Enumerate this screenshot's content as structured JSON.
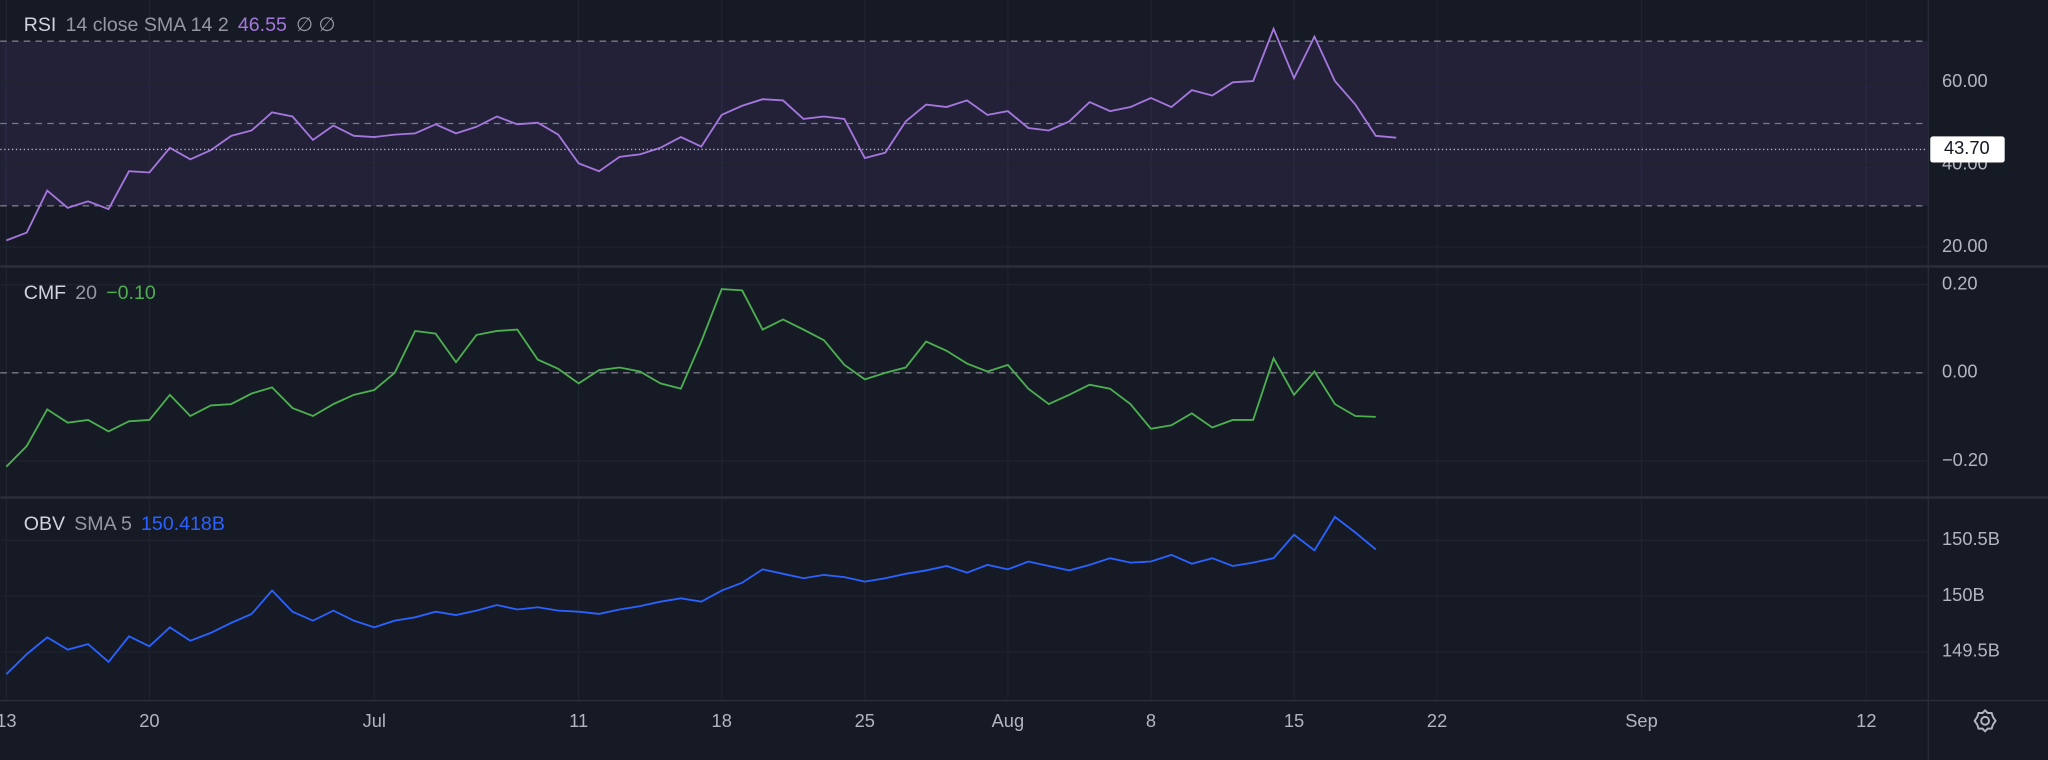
{
  "x_axis": {
    "xlim": [
      -0.3,
      94
    ],
    "xticks": [
      {
        "value": 0,
        "label": "13"
      },
      {
        "value": 7,
        "label": "20"
      },
      {
        "value": 18,
        "label": "Jul"
      },
      {
        "value": 28,
        "label": "11"
      },
      {
        "value": 35,
        "label": "18"
      },
      {
        "value": 42,
        "label": "25"
      },
      {
        "value": 49,
        "label": "Aug"
      },
      {
        "value": 56,
        "label": "8"
      },
      {
        "value": 63,
        "label": "15"
      },
      {
        "value": 70,
        "label": "22"
      },
      {
        "value": 80,
        "label": "Sep"
      },
      {
        "value": 91,
        "label": "12"
      }
    ]
  },
  "chart_data": [
    {
      "type": "line",
      "title": "RSI",
      "params": "14 close SMA 14 2",
      "legend_value": "46.55",
      "extra": "∅ ∅",
      "series": [
        {
          "name": "RSI",
          "color": "#a577dd",
          "values": [
            21.6,
            23.5,
            33.7,
            29.5,
            31.1,
            29.2,
            38.4,
            38.1,
            44.1,
            41.3,
            43.5,
            47.0,
            48.3,
            52.7,
            51.7,
            46.0,
            49.5,
            47.0,
            46.7,
            47.3,
            47.6,
            49.8,
            47.6,
            49.2,
            51.7,
            49.8,
            50.2,
            47.3,
            40.3,
            38.4,
            41.9,
            42.5,
            44.1,
            46.7,
            44.4,
            52.1,
            54.3,
            55.9,
            55.6,
            51.1,
            51.7,
            51.1,
            41.6,
            42.9,
            50.5,
            54.6,
            54.0,
            55.6,
            52.1,
            53.0,
            48.9,
            48.3,
            50.5,
            55.2,
            53.0,
            54.0,
            56.2,
            54.0,
            58.1,
            56.8,
            60.0,
            60.3,
            73.0,
            61.0,
            71.1,
            60.3,
            54.6,
            47.0,
            46.55
          ]
        }
      ],
      "ylim": [
        15.6,
        80
      ],
      "yticks": [
        {
          "value": 20,
          "label": "20.00"
        },
        {
          "value": 40,
          "label": "40.00"
        },
        {
          "value": 60,
          "label": "60.00"
        }
      ],
      "levels": [
        30,
        50,
        70
      ],
      "band": true,
      "band_color": "rgba(126,87,194,0.12)",
      "marker": {
        "value": 43.7,
        "label": "43.70"
      },
      "grid": true
    },
    {
      "type": "line",
      "title": "CMF",
      "params": "20",
      "legend_value": "−0.10",
      "series": [
        {
          "name": "CMF",
          "color": "#4caf50",
          "values": [
            -0.213,
            -0.166,
            -0.083,
            -0.113,
            -0.107,
            -0.133,
            -0.11,
            -0.107,
            -0.05,
            -0.098,
            -0.074,
            -0.071,
            -0.047,
            -0.033,
            -0.08,
            -0.098,
            -0.071,
            -0.05,
            -0.039,
            0.0,
            0.095,
            0.089,
            0.024,
            0.086,
            0.095,
            0.098,
            0.03,
            0.009,
            -0.024,
            0.006,
            0.012,
            0.003,
            -0.024,
            -0.036,
            0.071,
            0.19,
            0.187,
            0.098,
            0.121,
            0.098,
            0.074,
            0.018,
            -0.015,
            0.0,
            0.012,
            0.071,
            0.05,
            0.021,
            0.003,
            0.018,
            -0.036,
            -0.071,
            -0.05,
            -0.027,
            -0.036,
            -0.071,
            -0.127,
            -0.119,
            -0.092,
            -0.124,
            -0.107,
            -0.107,
            0.033,
            -0.05,
            0.003,
            -0.071,
            -0.098,
            -0.1
          ]
        }
      ],
      "ylim": [
        -0.28,
        0.2385
      ],
      "yticks": [
        {
          "value": -0.2,
          "label": "−0.20"
        },
        {
          "value": 0,
          "label": "0.00"
        },
        {
          "value": 0.2,
          "label": "0.20"
        }
      ],
      "levels": [
        0
      ],
      "grid": true
    },
    {
      "type": "line",
      "title": "OBV",
      "params": "SMA 5",
      "legend_value": "150.418B",
      "series": [
        {
          "name": "OBV",
          "color": "#2962ff",
          "values": [
            149.3,
            149.48,
            149.63,
            149.52,
            149.57,
            149.41,
            149.64,
            149.55,
            149.72,
            149.6,
            149.67,
            149.76,
            149.84,
            150.05,
            149.86,
            149.78,
            149.87,
            149.78,
            149.72,
            149.78,
            149.81,
            149.86,
            149.83,
            149.87,
            149.92,
            149.88,
            149.9,
            149.87,
            149.86,
            149.84,
            149.88,
            149.91,
            149.95,
            149.98,
            149.95,
            150.05,
            150.12,
            150.24,
            150.2,
            150.16,
            150.19,
            150.17,
            150.13,
            150.16,
            150.2,
            150.23,
            150.27,
            150.21,
            150.28,
            150.24,
            150.31,
            150.27,
            150.23,
            150.28,
            150.34,
            150.3,
            150.31,
            150.37,
            150.29,
            150.34,
            150.27,
            150.3,
            150.34,
            150.55,
            150.41,
            150.71,
            150.57,
            150.418
          ]
        }
      ],
      "ylim": [
        149.081,
        150.872
      ],
      "yticks": [
        {
          "value": 149.5,
          "label": "149.5B"
        },
        {
          "value": 150,
          "label": "150B"
        },
        {
          "value": 150.5,
          "label": "150.5B"
        }
      ],
      "levels": [],
      "grid": true
    }
  ]
}
